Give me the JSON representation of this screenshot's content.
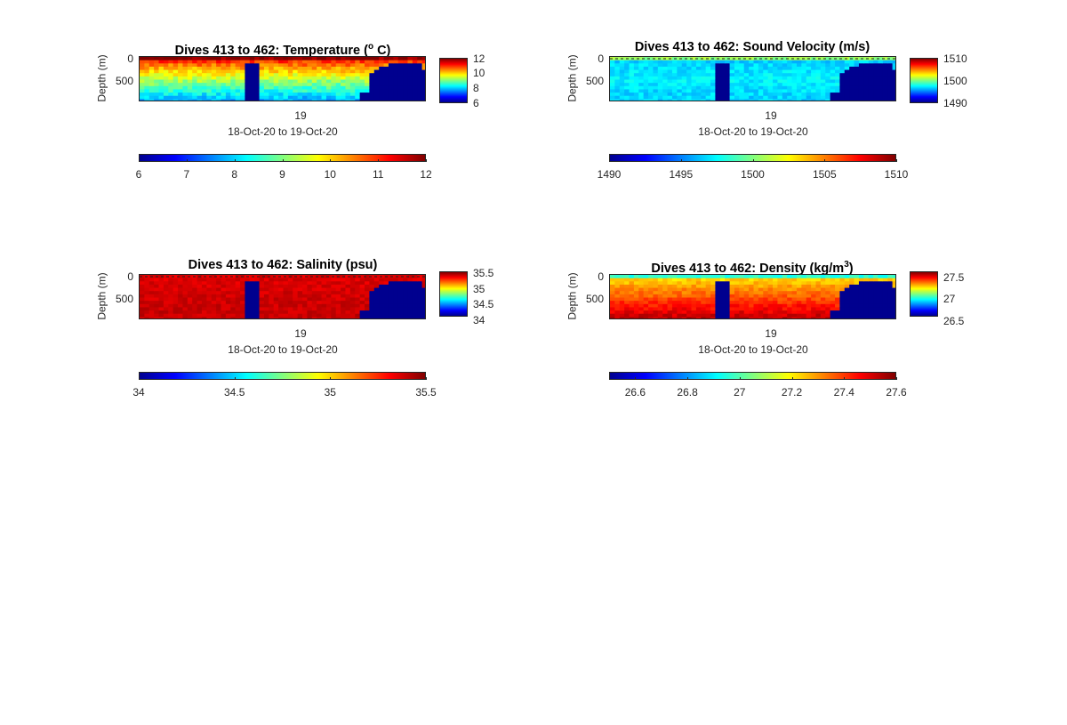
{
  "figure": {
    "colormap": [
      "#00008f",
      "#0000ff",
      "#0080ff",
      "#00ffff",
      "#80ff80",
      "#ffff00",
      "#ff8000",
      "#ff0000",
      "#800000"
    ],
    "depth_axis_label": "Depth (m)",
    "time_tick": "19",
    "time_range_label": "18-Oct-20 to 19-Oct-20"
  },
  "chart_data": [
    {
      "id": "temperature",
      "type": "heatmap",
      "title": "Dives 413 to 462: Temperature (",
      "title_sup": "o",
      "title_suffix": " C)",
      "xlabel": "18-Oct-20 to 19-Oct-20",
      "ylabel": "Depth (m)",
      "x_ticks": [
        "19"
      ],
      "y_ticks": [
        "0",
        "500"
      ],
      "ylim": [
        0,
        1000
      ],
      "clim": [
        6,
        12
      ],
      "side_colorbar_ticks": [
        "12",
        "10",
        "8",
        "6"
      ],
      "bottom_colorbar_ticks": [
        "6",
        "7",
        "8",
        "9",
        "10",
        "11",
        "12"
      ],
      "surface_value": 11.6,
      "bottom_value": 7.6,
      "profile_shape": "thermocline",
      "noise": 0.35,
      "dashed_surface_line": false
    },
    {
      "id": "sound_velocity",
      "type": "heatmap",
      "title": "Dives 413 to 462: Sound Velocity (m/s)",
      "xlabel": "18-Oct-20 to 19-Oct-20",
      "ylabel": "Depth (m)",
      "x_ticks": [
        "19"
      ],
      "y_ticks": [
        "0",
        "500"
      ],
      "ylim": [
        0,
        1000
      ],
      "clim": [
        1490,
        1510
      ],
      "side_colorbar_ticks": [
        "1510",
        "1500",
        "1490"
      ],
      "bottom_colorbar_ticks": [
        "1490",
        "1495",
        "1500",
        "1505",
        "1510"
      ],
      "surface_value": 1500.5,
      "bottom_value": 1496.5,
      "profile_shape": "surface_layer",
      "noise": 0.8,
      "dashed_surface_line": true
    },
    {
      "id": "salinity",
      "type": "heatmap",
      "title": "Dives 413 to 462: Salinity (psu)",
      "xlabel": "18-Oct-20 to 19-Oct-20",
      "ylabel": "Depth (m)",
      "x_ticks": [
        "19"
      ],
      "y_ticks": [
        "0",
        "500"
      ],
      "ylim": [
        0,
        1000
      ],
      "clim": [
        34,
        35.5
      ],
      "side_colorbar_ticks": [
        "35.5",
        "35",
        "34.5",
        "34"
      ],
      "bottom_colorbar_ticks": [
        "34",
        "34.5",
        "35",
        "35.5"
      ],
      "surface_value": 35.36,
      "bottom_value": 35.4,
      "profile_shape": "uniform",
      "noise": 0.04,
      "dashed_surface_line": true
    },
    {
      "id": "density",
      "type": "heatmap",
      "title": "Dives 413 to 462: Density (kg/m",
      "title_sup": "3",
      "title_suffix": ")",
      "xlabel": "18-Oct-20 to 19-Oct-20",
      "ylabel": "Depth (m)",
      "x_ticks": [
        "19"
      ],
      "y_ticks": [
        "0",
        "500"
      ],
      "ylim": [
        0,
        1000
      ],
      "clim": [
        26.5,
        27.6
      ],
      "side_colorbar_ticks": [
        "27.5",
        "27",
        "26.5"
      ],
      "bottom_colorbar_ticks": [
        "26.6",
        "26.8",
        "27",
        "27.2",
        "27.4",
        "27.6"
      ],
      "bottom_colorbar_tick_values": [
        26.6,
        26.8,
        27.0,
        27.2,
        27.4,
        27.6
      ],
      "side_colorbar_tick_values": [
        27.5,
        27.0,
        26.5
      ],
      "surface_value": 26.95,
      "bottom_value": 27.45,
      "profile_shape": "pycnocline",
      "noise": 0.04,
      "dashed_surface_line": false
    }
  ]
}
